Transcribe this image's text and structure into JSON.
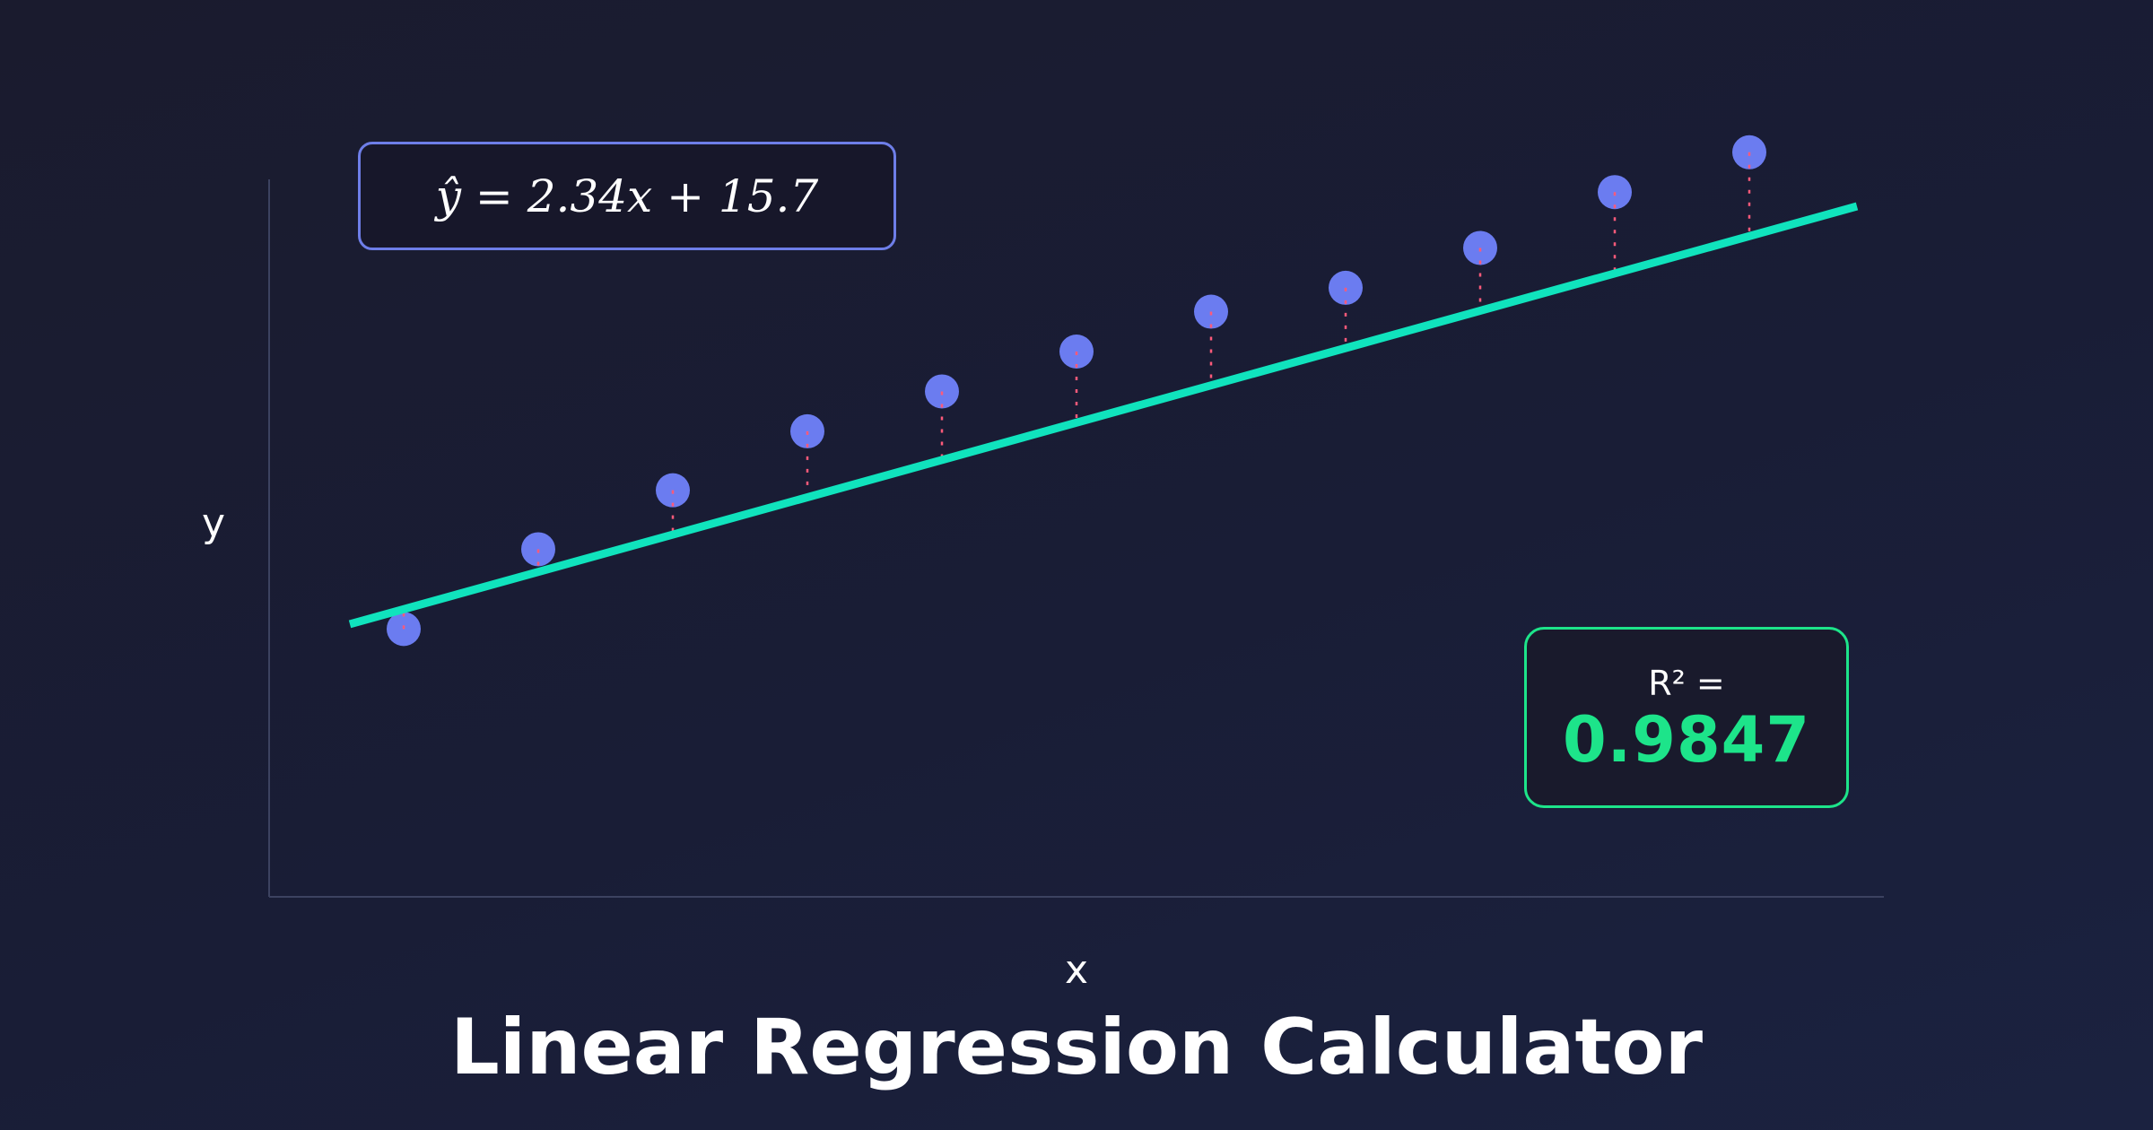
{
  "page": {
    "title": "Linear Regression Calculator"
  },
  "equation": "ŷ = 2.34x + 15.7",
  "r_squared": {
    "label": "R² =",
    "value": "0.9847"
  },
  "colors": {
    "background": "#1a1b2e",
    "points": "#6b7cf0",
    "regression_line": "#10e3bd",
    "residuals": "#ff5a7a",
    "equation_border": "#6e7ee8",
    "r_squared_accent": "#1de48a"
  },
  "chart_data": {
    "type": "scatter",
    "title": "",
    "xlabel": "x",
    "ylabel": "y",
    "xlim": [
      0,
      12
    ],
    "ylim": [
      0,
      45
    ],
    "grid": false,
    "x": [
      1,
      2,
      3,
      4,
      5,
      6,
      7,
      8,
      9,
      10,
      11
    ],
    "y": [
      16.8,
      21.8,
      25.5,
      29.2,
      31.7,
      34.2,
      36.7,
      38.2,
      40.7,
      44.2,
      46.7
    ],
    "regression": {
      "slope": 2.34,
      "intercept": 15.7,
      "x_range": [
        0.6,
        11.8
      ]
    },
    "residuals_shown": true
  }
}
